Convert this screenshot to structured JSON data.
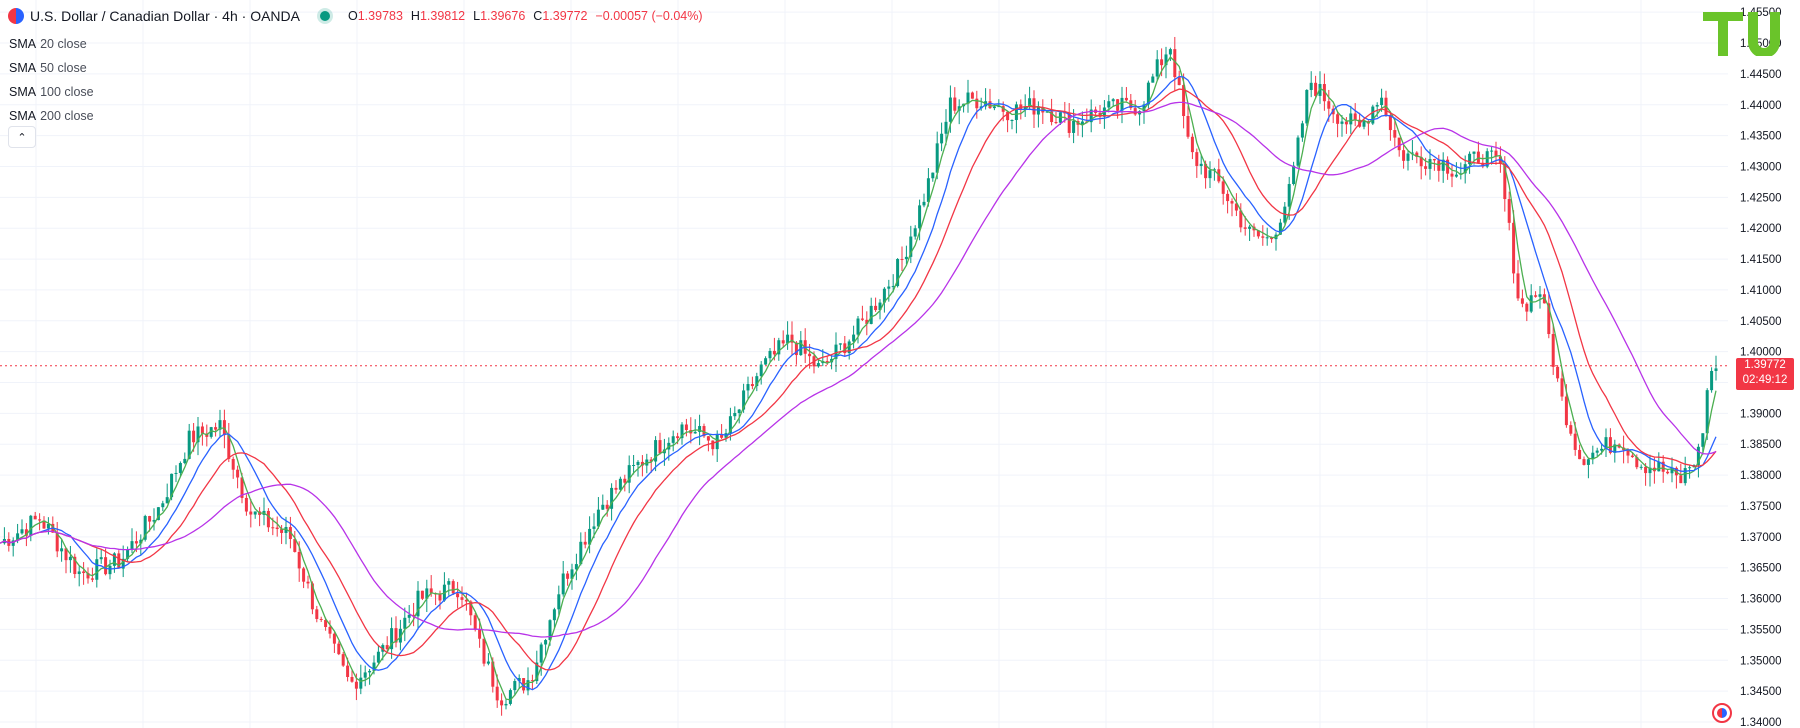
{
  "header": {
    "title": "U.S. Dollar / Canadian Dollar · 4h · OANDA",
    "ohlc": [
      {
        "label": "O",
        "value": "1.39783"
      },
      {
        "label": "H",
        "value": "1.39812"
      },
      {
        "label": "L",
        "value": "1.39676"
      },
      {
        "label": "C",
        "value": "1.39772"
      }
    ],
    "change": "−0.00057 (−0.04%)"
  },
  "indicators": [
    {
      "name": "SMA",
      "param": "20 close",
      "color": "#4caf50"
    },
    {
      "name": "SMA",
      "param": "50 close",
      "color": "#2962ff"
    },
    {
      "name": "SMA",
      "param": "100 close",
      "color": "#f23645"
    },
    {
      "name": "SMA",
      "param": "200 close",
      "color": "#b833e8"
    }
  ],
  "price_badge": {
    "price": "1.39772",
    "countdown": "02:49:12",
    "color": "#f23645"
  },
  "colors": {
    "up": "#089981",
    "down": "#f23645",
    "logo": "#6ac42a"
  },
  "chart_data": {
    "type": "candlestick",
    "ylim": [
      1.34,
      1.456
    ],
    "y_ticks": [
      "1.45500",
      "1.45000",
      "1.44500",
      "1.44000",
      "1.43500",
      "1.43000",
      "1.42500",
      "1.42000",
      "1.41500",
      "1.41000",
      "1.40500",
      "1.40000",
      "1.39500",
      "1.39000",
      "1.38500",
      "1.38000",
      "1.37500",
      "1.37000",
      "1.36500",
      "1.36000",
      "1.35500",
      "1.35000",
      "1.34500",
      "1.34000"
    ],
    "current_price": 1.39772,
    "price_path": [
      [
        0,
        1.369
      ],
      [
        40,
        1.373
      ],
      [
        80,
        1.364
      ],
      [
        120,
        1.366
      ],
      [
        160,
        1.375
      ],
      [
        190,
        1.386
      ],
      [
        220,
        1.388
      ],
      [
        250,
        1.374
      ],
      [
        290,
        1.37
      ],
      [
        320,
        1.356
      ],
      [
        350,
        1.346
      ],
      [
        380,
        1.351
      ],
      [
        420,
        1.36
      ],
      [
        460,
        1.362
      ],
      [
        480,
        1.352
      ],
      [
        500,
        1.344
      ],
      [
        530,
        1.347
      ],
      [
        560,
        1.362
      ],
      [
        600,
        1.375
      ],
      [
        640,
        1.382
      ],
      [
        680,
        1.388
      ],
      [
        720,
        1.385
      ],
      [
        760,
        1.397
      ],
      [
        790,
        1.402
      ],
      [
        820,
        1.397
      ],
      [
        860,
        1.404
      ],
      [
        900,
        1.414
      ],
      [
        930,
        1.428
      ],
      [
        950,
        1.44
      ],
      [
        980,
        1.441
      ],
      [
        1010,
        1.439
      ],
      [
        1040,
        1.44
      ],
      [
        1070,
        1.437
      ],
      [
        1100,
        1.439
      ],
      [
        1140,
        1.44
      ],
      [
        1170,
        1.45
      ],
      [
        1190,
        1.432
      ],
      [
        1220,
        1.427
      ],
      [
        1250,
        1.419
      ],
      [
        1270,
        1.418
      ],
      [
        1290,
        1.426
      ],
      [
        1310,
        1.444
      ],
      [
        1340,
        1.438
      ],
      [
        1360,
        1.436
      ],
      [
        1380,
        1.442
      ],
      [
        1400,
        1.432
      ],
      [
        1440,
        1.431
      ],
      [
        1460,
        1.429
      ],
      [
        1480,
        1.432
      ],
      [
        1500,
        1.43
      ],
      [
        1520,
        1.407
      ],
      [
        1540,
        1.41
      ],
      [
        1560,
        1.393
      ],
      [
        1580,
        1.383
      ],
      [
        1600,
        1.384
      ],
      [
        1620,
        1.386
      ],
      [
        1640,
        1.382
      ],
      [
        1660,
        1.381
      ],
      [
        1680,
        1.379
      ],
      [
        1700,
        1.384
      ],
      [
        1710,
        1.397
      ],
      [
        1720,
        1.3977
      ]
    ]
  }
}
